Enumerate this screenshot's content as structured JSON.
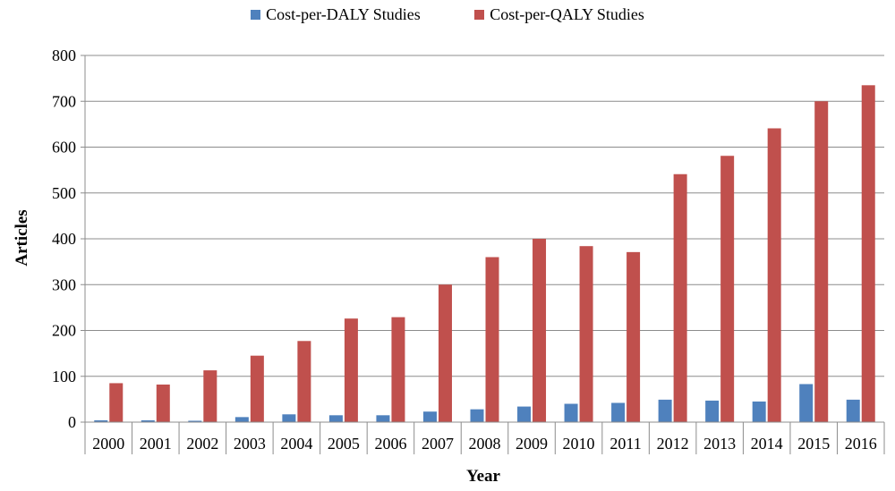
{
  "chart_data": {
    "type": "bar",
    "title": "",
    "xlabel": "Year",
    "ylabel": "Articles",
    "ylim": [
      0,
      800
    ],
    "yticks": [
      0,
      100,
      200,
      300,
      400,
      500,
      600,
      700,
      800
    ],
    "grid": true,
    "legend_position": "top",
    "categories": [
      "2000",
      "2001",
      "2002",
      "2003",
      "2004",
      "2005",
      "2006",
      "2007",
      "2008",
      "2009",
      "2010",
      "2011",
      "2012",
      "2013",
      "2014",
      "2015",
      "2016"
    ],
    "series": [
      {
        "name": "Cost-per-DALY Studies",
        "color": "#4f81bd",
        "values": [
          4,
          4,
          3,
          11,
          17,
          15,
          15,
          23,
          28,
          34,
          40,
          42,
          49,
          47,
          45,
          83,
          49
        ]
      },
      {
        "name": "Cost-per-QALY Studies",
        "color": "#c0504d",
        "values": [
          85,
          82,
          113,
          145,
          177,
          226,
          229,
          300,
          360,
          400,
          384,
          371,
          541,
          581,
          641,
          700,
          735
        ]
      }
    ]
  }
}
